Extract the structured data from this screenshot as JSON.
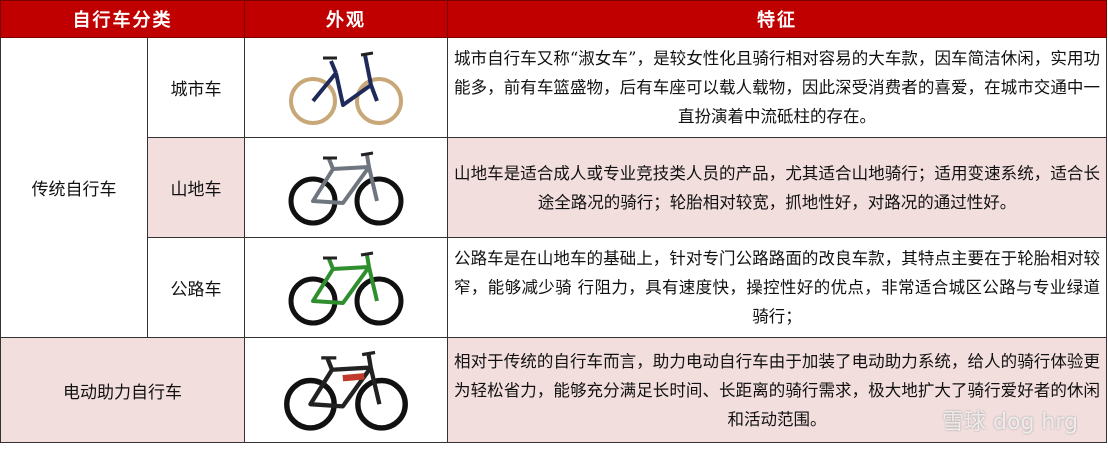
{
  "header": {
    "category": "自行车分类",
    "appearance": "外观",
    "features": "特征"
  },
  "colors": {
    "header_bg": "#c00000",
    "highlight_bg": "#f3dede"
  },
  "rows": [
    {
      "group": "传统自行车",
      "name": "城市车",
      "image": "city-bike",
      "frame_color": "#1e2a5a",
      "features": "城市自行车又称“淑女车”，是较女性化且骑行相对容易的大车款，因车简洁休闲，实用功能多，前有车篮盛物，后有车座可以载人载物，因此深受消费者的喜爱，在城市交通中一直扮演着中流砥柱的存在。"
    },
    {
      "name": "山地车",
      "image": "mountain-bike",
      "frame_color": "#6f7680",
      "features": "山地车是适合成人或专业竞技类人员的产品，尤其适合山地骑行；适用变速系统，适合长途全路况的骑行；轮胎相对较宽，抓地性好，对路况的通过性好。"
    },
    {
      "name": "公路车",
      "image": "road-bike",
      "frame_color": "#2f8f2f",
      "features": "公路车是在山地车的基础上，针对专门公路路面的改良车款，其特点主要在于轮胎相对较窄，能够减少骑 行阻力，具有速度快，操控性好的优点，非常适合城区公路与专业绿道骑行；"
    },
    {
      "group": "电动助力自行车",
      "image": "e-bike",
      "frame_color": "#222222",
      "features": "相对于传统的自行车而言，助力电动自行车由于加装了电动助力系统，给人的骑行体验更为轻松省力，能够充分满足长时间、长距离的骑行需求，极大地扩大了骑行爱好者的休闲和活动范围。"
    }
  ],
  "watermark": "雪球 dog hrg"
}
